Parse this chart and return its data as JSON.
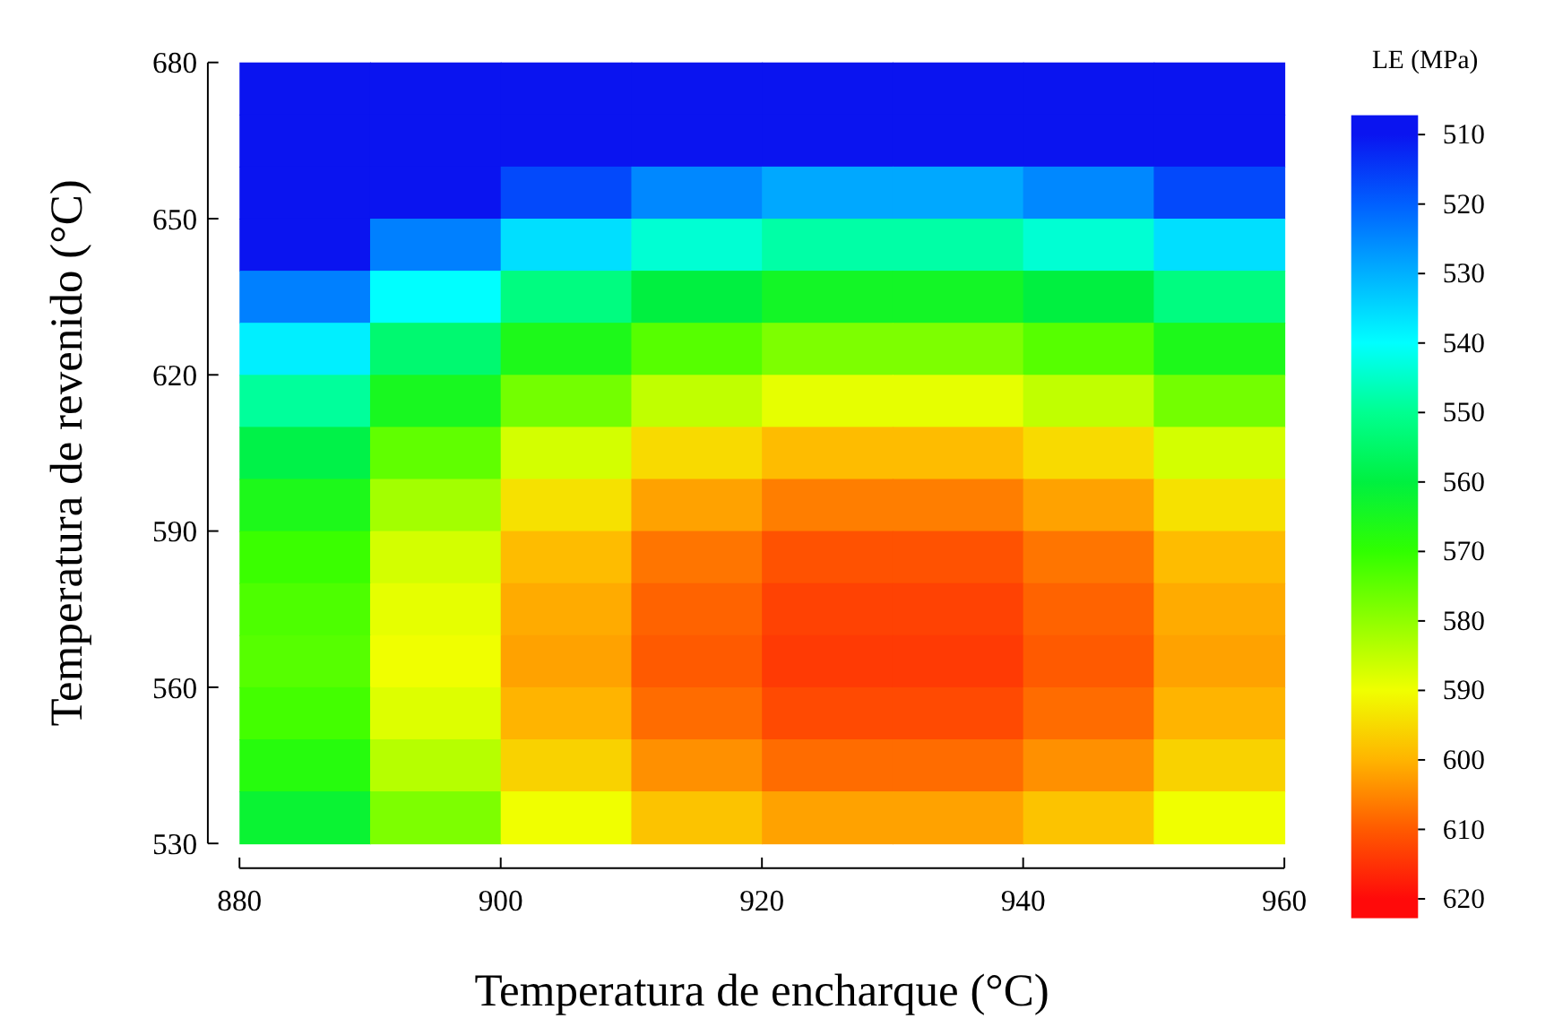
{
  "chart_data": {
    "type": "heatmap",
    "xlabel": "Temperatura de encharque (°C)",
    "ylabel": "Temperatura de revenido (°C)",
    "legend_title": "LE (MPa)",
    "clim": [
      510,
      620
    ],
    "x": [
      885,
      895,
      905,
      915,
      925,
      935,
      945,
      955
    ],
    "y": [
      675,
      665,
      655,
      645,
      635,
      625,
      615,
      605,
      595,
      585,
      575,
      565,
      555,
      545,
      535
    ],
    "xlim": [
      880,
      960
    ],
    "xticks": [
      880,
      900,
      920,
      940,
      960
    ],
    "ylim": [
      530,
      680
    ],
    "yticks": [
      530,
      560,
      590,
      620,
      650,
      680
    ],
    "cticks": [
      510,
      520,
      530,
      540,
      550,
      560,
      570,
      580,
      590,
      600,
      610,
      620
    ],
    "colors": [
      "#0a14f0",
      "#0060ff",
      "#00b0ff",
      "#00ffff",
      "#00ff90",
      "#00f040",
      "#30ff00",
      "#90ff00",
      "#f0ff00",
      "#ffb400",
      "#ff5a00",
      "#ff0a0a"
    ],
    "cells": [
      [
        510,
        510,
        510,
        510,
        510,
        510,
        510,
        510
      ],
      [
        510,
        510,
        510,
        510,
        510,
        510,
        510,
        510
      ],
      [
        510,
        510,
        517,
        525,
        529,
        529,
        525,
        517
      ],
      [
        510,
        524,
        536,
        544,
        548,
        548,
        544,
        536
      ],
      [
        524,
        540,
        552,
        560,
        564,
        564,
        560,
        552
      ],
      [
        538,
        554,
        566,
        574,
        578,
        578,
        574,
        566
      ],
      [
        549,
        565,
        577,
        585,
        589,
        589,
        585,
        577
      ],
      [
        559,
        575,
        587,
        595,
        599,
        599,
        595,
        587
      ],
      [
        566,
        582,
        594,
        602,
        606,
        606,
        602,
        594
      ],
      [
        571,
        587,
        599,
        607,
        611,
        611,
        607,
        599
      ],
      [
        573,
        589,
        601,
        609,
        613,
        613,
        609,
        601
      ],
      [
        574,
        590,
        602,
        610,
        614,
        614,
        610,
        602
      ],
      [
        572,
        588,
        600,
        608,
        612,
        612,
        608,
        600
      ],
      [
        568,
        584,
        596,
        604,
        608,
        608,
        604,
        596
      ],
      [
        562,
        578,
        590,
        598,
        602,
        602,
        598,
        590
      ]
    ]
  }
}
